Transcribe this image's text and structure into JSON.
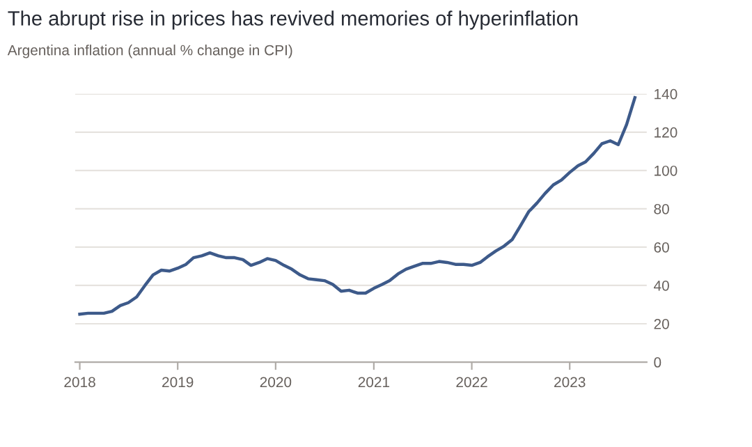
{
  "chart_data": {
    "type": "line",
    "title": "The abrupt rise in prices has revived memories of hyperinflation",
    "subtitle": "Argentina inflation (annual % change in CPI)",
    "x": [
      "2018-01",
      "2018-02",
      "2018-03",
      "2018-04",
      "2018-05",
      "2018-06",
      "2018-07",
      "2018-08",
      "2018-09",
      "2018-10",
      "2018-11",
      "2018-12",
      "2019-01",
      "2019-02",
      "2019-03",
      "2019-04",
      "2019-05",
      "2019-06",
      "2019-07",
      "2019-08",
      "2019-09",
      "2019-10",
      "2019-11",
      "2019-12",
      "2020-01",
      "2020-02",
      "2020-03",
      "2020-04",
      "2020-05",
      "2020-06",
      "2020-07",
      "2020-08",
      "2020-09",
      "2020-10",
      "2020-11",
      "2020-12",
      "2021-01",
      "2021-02",
      "2021-03",
      "2021-04",
      "2021-05",
      "2021-06",
      "2021-07",
      "2021-08",
      "2021-09",
      "2021-10",
      "2021-11",
      "2021-12",
      "2022-01",
      "2022-02",
      "2022-03",
      "2022-04",
      "2022-05",
      "2022-06",
      "2022-07",
      "2022-08",
      "2022-09",
      "2022-10",
      "2022-11",
      "2022-12",
      "2023-01",
      "2023-02",
      "2023-03",
      "2023-04",
      "2023-05",
      "2023-06",
      "2023-07",
      "2023-08",
      "2023-09"
    ],
    "series": [
      {
        "color": "#3d5a8a",
        "values": [
          25,
          25.5,
          25.5,
          25.5,
          26.5,
          29.5,
          31,
          34,
          40,
          45.5,
          48,
          47.5,
          49,
          51,
          54.5,
          55.5,
          57,
          55.5,
          54.5,
          54.5,
          53.5,
          50.5,
          52,
          54,
          53,
          50.5,
          48.5,
          45.5,
          43.5,
          43,
          42.5,
          40.5,
          37,
          37.5,
          36,
          36,
          38.5,
          40.5,
          42.5,
          46,
          48.5,
          50,
          51.5,
          51.5,
          52.5,
          52,
          51,
          51,
          50.5,
          52,
          55,
          58,
          60.5,
          64,
          71,
          78.5,
          83,
          88,
          92.5,
          95,
          99,
          102.5,
          104.5,
          109,
          114,
          115.5,
          113.5,
          124,
          138
        ]
      }
    ],
    "ylim": [
      0,
      140
    ],
    "yticks": [
      0,
      20,
      40,
      60,
      80,
      100,
      120,
      140
    ],
    "xlim": [
      "2017-12-15",
      "2023-10-15"
    ],
    "xticks": [
      {
        "value": "2018",
        "label": "2018"
      },
      {
        "value": "2019",
        "label": "2019"
      },
      {
        "value": "2020",
        "label": "2020"
      },
      {
        "value": "2021",
        "label": "2021"
      },
      {
        "value": "2022",
        "label": "2022"
      },
      {
        "value": "2023",
        "label": "2023"
      }
    ],
    "grid": "y",
    "legend": false,
    "marker": "none",
    "line_style": "solid"
  }
}
